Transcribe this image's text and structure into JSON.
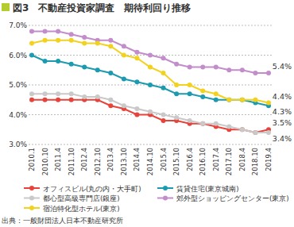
{
  "chart_data": {
    "type": "line",
    "title": "図3　不動産投資家調査　期待利回り推移",
    "source": "出典：一般財団法人日本不動産研究所",
    "categories": [
      "2010.1",
      "2010.10",
      "2011.4",
      "2011.10",
      "2012.4",
      "2012.10",
      "2013.4",
      "2013.10",
      "2014.4",
      "2014.10",
      "2015.4",
      "2015.10",
      "2016.4",
      "2016.10",
      "2017.4",
      "2017.10",
      "2018.4",
      "2018.10",
      "2019.4"
    ],
    "ylim": [
      3,
      7
    ],
    "yticks": [
      {
        "value": 3,
        "label": "3.0%"
      },
      {
        "value": 4,
        "label": "4.0%"
      },
      {
        "value": 5,
        "label": "5.0%"
      },
      {
        "value": 6,
        "label": "6.0%"
      },
      {
        "value": 7,
        "label": "7.0%"
      }
    ],
    "grid": true,
    "legend": "bottom",
    "marker": "circle",
    "series": [
      {
        "name": "オフィスビル(丸の内・大手町)",
        "color": "#e8433a",
        "values": [
          4.5,
          4.5,
          4.5,
          4.5,
          4.5,
          4.5,
          4.3,
          4.2,
          4.0,
          4.0,
          3.8,
          3.8,
          3.7,
          3.7,
          3.6,
          3.5,
          3.5,
          3.4,
          3.5
        ],
        "end_label": "3.5%"
      },
      {
        "name": "賃貸住宅(東京城南)",
        "color": "#1c9bb0",
        "values": [
          6.0,
          5.8,
          5.8,
          5.7,
          5.6,
          5.5,
          5.4,
          5.2,
          5.1,
          5.0,
          4.9,
          4.7,
          4.7,
          4.6,
          4.5,
          4.5,
          4.5,
          4.4,
          4.3
        ],
        "end_label": "4.3%"
      },
      {
        "name": "都心型高級専門店(銀座)",
        "color": "#c9c9c9",
        "values": [
          4.7,
          4.7,
          4.7,
          4.7,
          4.6,
          4.6,
          4.5,
          4.3,
          4.2,
          4.1,
          4.0,
          3.9,
          3.8,
          3.7,
          3.7,
          3.6,
          3.5,
          3.4,
          3.4
        ],
        "end_label": "3.4%"
      },
      {
        "name": "郊外型ショッピングセンター(東京)",
        "color": "#c38ccb",
        "values": [
          6.8,
          6.8,
          6.8,
          6.7,
          6.6,
          6.5,
          6.5,
          6.3,
          6.1,
          6.0,
          5.9,
          5.7,
          5.6,
          5.6,
          5.6,
          5.5,
          5.5,
          5.4,
          5.4
        ],
        "end_label": "5.4%"
      },
      {
        "name": "宿泊特化型ホテル(東京)",
        "color": "#f2d21e",
        "values": [
          6.4,
          6.5,
          6.5,
          6.5,
          6.4,
          6.4,
          6.3,
          6.0,
          5.9,
          5.6,
          5.4,
          5.0,
          5.0,
          4.8,
          4.7,
          4.5,
          4.5,
          4.5,
          4.4
        ],
        "end_label": "4.4%"
      }
    ]
  }
}
